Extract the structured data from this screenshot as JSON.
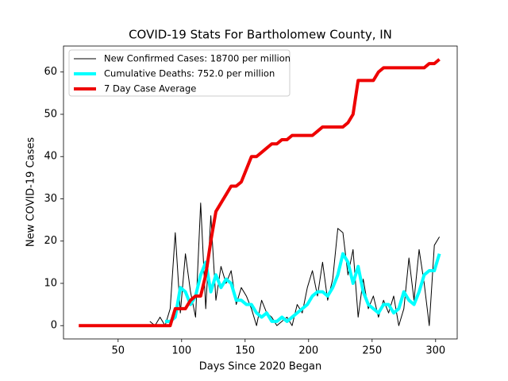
{
  "chart_data": {
    "type": "line",
    "title": "COVID-19 Stats For Bartholomew County, IN",
    "xlabel": "Days Since 2020 Began",
    "ylabel": "New COVID-19 Cases",
    "x": [
      19,
      23,
      27,
      31,
      35,
      39,
      43,
      47,
      51,
      55,
      59,
      63,
      67,
      71,
      75,
      79,
      83,
      87,
      91,
      95,
      99,
      103,
      107,
      111,
      115,
      119,
      123,
      127,
      131,
      135,
      139,
      143,
      147,
      151,
      155,
      159,
      163,
      167,
      171,
      175,
      179,
      183,
      187,
      191,
      195,
      199,
      203,
      207,
      211,
      215,
      219,
      223,
      227,
      231,
      235,
      239,
      243,
      247,
      251,
      255,
      259,
      263,
      267,
      271,
      275,
      279,
      283,
      287,
      291,
      295,
      299,
      303
    ],
    "series": [
      {
        "name": "New Confirmed Cases: 18700 per million",
        "color": "#000000",
        "linewidth": 1,
        "values": [
          null,
          null,
          null,
          null,
          null,
          null,
          null,
          null,
          null,
          null,
          null,
          null,
          null,
          null,
          1,
          0,
          2,
          0,
          4,
          22,
          3,
          17,
          8,
          2,
          29,
          4,
          26,
          6,
          14,
          10,
          13,
          5,
          9,
          7,
          4,
          0,
          6,
          3,
          2,
          0,
          1,
          2,
          0,
          5,
          3,
          9,
          13,
          7,
          15,
          6,
          11,
          23,
          22,
          12,
          18,
          2,
          11,
          4,
          7,
          2,
          6,
          3,
          7,
          0,
          4,
          16,
          6,
          18,
          10,
          0,
          19,
          21
        ]
      },
      {
        "name": "Cumulative Deaths: 752.0 per million",
        "color": "#00ffff",
        "linewidth": 4,
        "values": [
          null,
          null,
          null,
          null,
          null,
          null,
          null,
          null,
          null,
          null,
          null,
          null,
          null,
          null,
          null,
          null,
          null,
          1,
          1,
          2,
          9,
          8,
          5,
          7,
          12,
          15,
          8,
          12,
          9,
          11,
          10,
          6,
          6,
          5,
          5,
          3,
          2,
          3,
          1,
          1,
          2,
          1,
          2,
          3,
          4,
          5,
          7,
          8,
          8,
          7,
          9,
          12,
          17,
          15,
          10,
          14,
          8,
          5,
          4,
          3,
          5,
          5,
          3,
          4,
          8,
          6,
          5,
          8,
          12,
          13,
          13,
          17
        ]
      },
      {
        "name": "7 Day Case Average",
        "color": "#ee0000",
        "linewidth": 4,
        "values": [
          0,
          0,
          0,
          0,
          0,
          0,
          0,
          0,
          0,
          0,
          0,
          0,
          0,
          0,
          0,
          0,
          0,
          0,
          0,
          4,
          4,
          4,
          6,
          7,
          7,
          12,
          20,
          27,
          29,
          31,
          33,
          33,
          34,
          37,
          40,
          40,
          41,
          42,
          43,
          43,
          44,
          44,
          45,
          45,
          45,
          45,
          45,
          46,
          47,
          47,
          47,
          47,
          47,
          48,
          50,
          58,
          58,
          58,
          58,
          60,
          61,
          61,
          61,
          61,
          61,
          61,
          61,
          61,
          61,
          62,
          62,
          63
        ]
      }
    ],
    "xlim": [
      7,
      317
    ],
    "xticks": [
      50,
      100,
      150,
      200,
      250,
      300
    ],
    "ylim": [
      -3.15,
      66.15
    ],
    "yticks": [
      0,
      10,
      20,
      30,
      40,
      50,
      60
    ],
    "legend": "upper left"
  }
}
